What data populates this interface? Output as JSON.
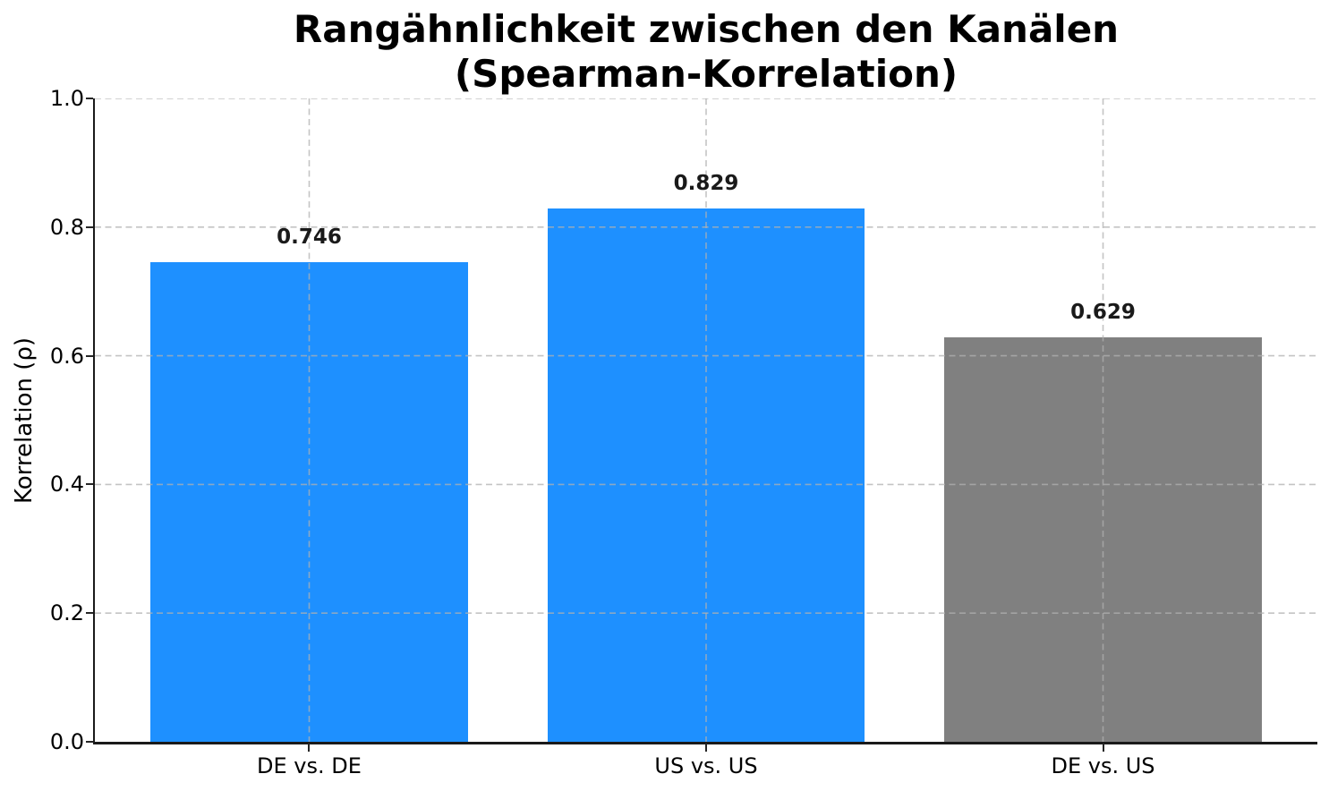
{
  "figure": {
    "background": "#ffffff"
  },
  "chart_data": {
    "type": "bar",
    "title": "Rangähnlichkeit zwischen den Kanälen (Spearman-Korrelation)",
    "title_line1": "Rangähnlichkeit zwischen den Kanälen",
    "title_line2": "(Spearman-Korrelation)",
    "categories": [
      "DE vs. DE",
      "US vs. US",
      "DE vs. US"
    ],
    "values": [
      0.746,
      0.829,
      0.629
    ],
    "value_labels": [
      "0.746",
      "0.829",
      "0.629"
    ],
    "bar_colors": [
      "#1E90FF",
      "#1E90FF",
      "#808080"
    ],
    "bar_width_fraction": 0.8,
    "xlabel": "",
    "ylabel": "Korrelation (ρ)",
    "ylim": [
      0.0,
      1.0
    ],
    "yticks": [
      0.0,
      0.2,
      0.4,
      0.6,
      0.8,
      1.0
    ],
    "ytick_labels": [
      "0.0",
      "0.2",
      "0.4",
      "0.6",
      "0.8",
      "1.0"
    ],
    "grid": {
      "visible": true,
      "style": "dashed",
      "axes": "both",
      "color": "#b0b0b0",
      "opacity": 0.75,
      "drawn_over_bars": true
    },
    "legend": {
      "visible": false
    }
  },
  "colors": {
    "title": "#000000",
    "tick_label": "#000000",
    "value_label": "#1a1a1a",
    "axis_spine": "#1a1a1a",
    "grid": "#b0b0b0",
    "bar_blue": "#1E90FF",
    "bar_gray": "#808080",
    "background": "#ffffff"
  }
}
